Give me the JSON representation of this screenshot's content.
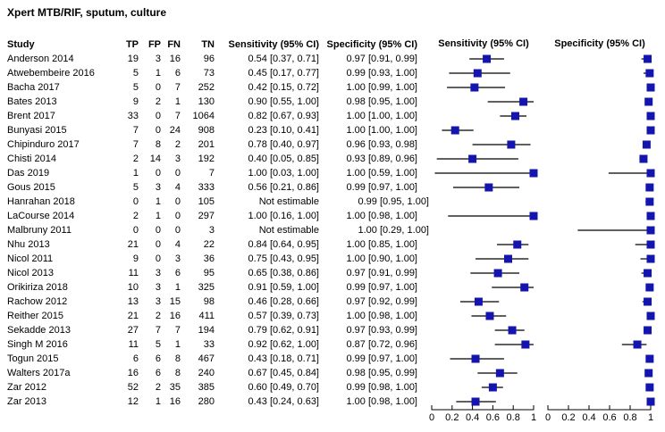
{
  "title": "Xpert MTB/RIF, sputum, culture",
  "colors": {
    "marker": "#1414AE",
    "ci_line": "#000000",
    "axis": "#000000",
    "text": "#000000",
    "background": "#ffffff"
  },
  "table": {
    "headers": {
      "study": "Study",
      "tp": "TP",
      "fp": "FP",
      "fn": "FN",
      "tn": "TN",
      "sensitivity": "Sensitivity (95% CI)",
      "specificity": "Specificity (95% CI)"
    },
    "plot_headers": {
      "sensitivity": "Sensitivity (95% CI)",
      "specificity": "Specificity (95% CI)"
    },
    "not_estimable_label": "Not estimable"
  },
  "chart_data": {
    "type": "forest",
    "panels": [
      "Sensitivity (95% CI)",
      "Specificity (95% CI)"
    ],
    "axis": {
      "range": [
        0,
        1
      ],
      "ticks": [
        0,
        0.2,
        0.4,
        0.6,
        0.8,
        1
      ],
      "tick_labels": [
        "0",
        "0.2",
        "0.4",
        "0.6",
        "0.8",
        "1"
      ]
    },
    "studies": [
      {
        "study": "Anderson 2014",
        "tp": 19,
        "fp": 3,
        "fn": 16,
        "tn": 96,
        "sensitivity_text": "0.54 [0.37, 0.71]",
        "specificity_text": "0.97 [0.91, 0.99]",
        "sensitivity": [
          0.54,
          0.37,
          0.71
        ],
        "specificity": [
          0.97,
          0.91,
          0.99
        ]
      },
      {
        "study": "Atwebembeire 2016",
        "tp": 5,
        "fp": 1,
        "fn": 6,
        "tn": 73,
        "sensitivity_text": "0.45 [0.17, 0.77]",
        "specificity_text": "0.99 [0.93, 1.00]",
        "sensitivity": [
          0.45,
          0.17,
          0.77
        ],
        "specificity": [
          0.99,
          0.93,
          1.0
        ]
      },
      {
        "study": "Bacha 2017",
        "tp": 5,
        "fp": 0,
        "fn": 7,
        "tn": 252,
        "sensitivity_text": "0.42 [0.15, 0.72]",
        "specificity_text": "1.00 [0.99, 1.00]",
        "sensitivity": [
          0.42,
          0.15,
          0.72
        ],
        "specificity": [
          1.0,
          0.99,
          1.0
        ]
      },
      {
        "study": "Bates 2013",
        "tp": 9,
        "fp": 2,
        "fn": 1,
        "tn": 130,
        "sensitivity_text": "0.90 [0.55, 1.00]",
        "specificity_text": "0.98 [0.95, 1.00]",
        "sensitivity": [
          0.9,
          0.55,
          1.0
        ],
        "specificity": [
          0.98,
          0.95,
          1.0
        ]
      },
      {
        "study": "Brent 2017",
        "tp": 33,
        "fp": 0,
        "fn": 7,
        "tn": 1064,
        "sensitivity_text": "0.82 [0.67, 0.93]",
        "specificity_text": "1.00 [1.00, 1.00]",
        "sensitivity": [
          0.82,
          0.67,
          0.93
        ],
        "specificity": [
          1.0,
          1.0,
          1.0
        ]
      },
      {
        "study": "Bunyasi 2015",
        "tp": 7,
        "fp": 0,
        "fn": 24,
        "tn": 908,
        "sensitivity_text": "0.23 [0.10, 0.41]",
        "specificity_text": "1.00 [1.00, 1.00]",
        "sensitivity": [
          0.23,
          0.1,
          0.41
        ],
        "specificity": [
          1.0,
          1.0,
          1.0
        ]
      },
      {
        "study": "Chipinduro 2017",
        "tp": 7,
        "fp": 8,
        "fn": 2,
        "tn": 201,
        "sensitivity_text": "0.78 [0.40, 0.97]",
        "specificity_text": "0.96 [0.93, 0.98]",
        "sensitivity": [
          0.78,
          0.4,
          0.97
        ],
        "specificity": [
          0.96,
          0.93,
          0.98
        ]
      },
      {
        "study": "Chisti 2014",
        "tp": 2,
        "fp": 14,
        "fn": 3,
        "tn": 192,
        "sensitivity_text": "0.40 [0.05, 0.85]",
        "specificity_text": "0.93 [0.89, 0.96]",
        "sensitivity": [
          0.4,
          0.05,
          0.85
        ],
        "specificity": [
          0.93,
          0.89,
          0.96
        ]
      },
      {
        "study": "Das 2019",
        "tp": 1,
        "fp": 0,
        "fn": 0,
        "tn": 7,
        "sensitivity_text": "1.00 [0.03, 1.00]",
        "specificity_text": "1.00 [0.59, 1.00]",
        "sensitivity": [
          1.0,
          0.03,
          1.0
        ],
        "specificity": [
          1.0,
          0.59,
          1.0
        ]
      },
      {
        "study": "Gous 2015",
        "tp": 5,
        "fp": 3,
        "fn": 4,
        "tn": 333,
        "sensitivity_text": "0.56 [0.21, 0.86]",
        "specificity_text": "0.99 [0.97, 1.00]",
        "sensitivity": [
          0.56,
          0.21,
          0.86
        ],
        "specificity": [
          0.99,
          0.97,
          1.0
        ]
      },
      {
        "study": "Hanrahan 2018",
        "tp": 0,
        "fp": 1,
        "fn": 0,
        "tn": 105,
        "sensitivity_text": "Not estimable",
        "specificity_text": "0.99 [0.95, 1.00]",
        "sensitivity": null,
        "specificity": [
          0.99,
          0.95,
          1.0
        ]
      },
      {
        "study": "LaCourse 2014",
        "tp": 2,
        "fp": 1,
        "fn": 0,
        "tn": 297,
        "sensitivity_text": "1.00 [0.16, 1.00]",
        "specificity_text": "1.00 [0.98, 1.00]",
        "sensitivity": [
          1.0,
          0.16,
          1.0
        ],
        "specificity": [
          1.0,
          0.98,
          1.0
        ]
      },
      {
        "study": "Malbruny 2011",
        "tp": 0,
        "fp": 0,
        "fn": 0,
        "tn": 3,
        "sensitivity_text": "Not estimable",
        "specificity_text": "1.00 [0.29, 1.00]",
        "sensitivity": null,
        "specificity": [
          1.0,
          0.29,
          1.0
        ]
      },
      {
        "study": "Nhu 2013",
        "tp": 21,
        "fp": 0,
        "fn": 4,
        "tn": 22,
        "sensitivity_text": "0.84 [0.64, 0.95]",
        "specificity_text": "1.00 [0.85, 1.00]",
        "sensitivity": [
          0.84,
          0.64,
          0.95
        ],
        "specificity": [
          1.0,
          0.85,
          1.0
        ]
      },
      {
        "study": "Nicol 2011",
        "tp": 9,
        "fp": 0,
        "fn": 3,
        "tn": 36,
        "sensitivity_text": "0.75 [0.43, 0.95]",
        "specificity_text": "1.00 [0.90, 1.00]",
        "sensitivity": [
          0.75,
          0.43,
          0.95
        ],
        "specificity": [
          1.0,
          0.9,
          1.0
        ]
      },
      {
        "study": "Nicol 2013",
        "tp": 11,
        "fp": 3,
        "fn": 6,
        "tn": 95,
        "sensitivity_text": "0.65 [0.38, 0.86]",
        "specificity_text": "0.97 [0.91, 0.99]",
        "sensitivity": [
          0.65,
          0.38,
          0.86
        ],
        "specificity": [
          0.97,
          0.91,
          0.99
        ]
      },
      {
        "study": "Orikiriza 2018",
        "tp": 10,
        "fp": 3,
        "fn": 1,
        "tn": 325,
        "sensitivity_text": "0.91 [0.59, 1.00]",
        "specificity_text": "0.99 [0.97, 1.00]",
        "sensitivity": [
          0.91,
          0.59,
          1.0
        ],
        "specificity": [
          0.99,
          0.97,
          1.0
        ]
      },
      {
        "study": "Rachow 2012",
        "tp": 13,
        "fp": 3,
        "fn": 15,
        "tn": 98,
        "sensitivity_text": "0.46 [0.28, 0.66]",
        "specificity_text": "0.97 [0.92, 0.99]",
        "sensitivity": [
          0.46,
          0.28,
          0.66
        ],
        "specificity": [
          0.97,
          0.92,
          0.99
        ]
      },
      {
        "study": "Reither 2015",
        "tp": 21,
        "fp": 2,
        "fn": 16,
        "tn": 411,
        "sensitivity_text": "0.57 [0.39, 0.73]",
        "specificity_text": "1.00 [0.98, 1.00]",
        "sensitivity": [
          0.57,
          0.39,
          0.73
        ],
        "specificity": [
          1.0,
          0.98,
          1.0
        ]
      },
      {
        "study": "Sekadde 2013",
        "tp": 27,
        "fp": 7,
        "fn": 7,
        "tn": 194,
        "sensitivity_text": "0.79 [0.62, 0.91]",
        "specificity_text": "0.97 [0.93, 0.99]",
        "sensitivity": [
          0.79,
          0.62,
          0.91
        ],
        "specificity": [
          0.97,
          0.93,
          0.99
        ]
      },
      {
        "study": "Singh M 2016",
        "tp": 11,
        "fp": 5,
        "fn": 1,
        "tn": 33,
        "sensitivity_text": "0.92 [0.62, 1.00]",
        "specificity_text": "0.87 [0.72, 0.96]",
        "sensitivity": [
          0.92,
          0.62,
          1.0
        ],
        "specificity": [
          0.87,
          0.72,
          0.96
        ]
      },
      {
        "study": "Togun 2015",
        "tp": 6,
        "fp": 6,
        "fn": 8,
        "tn": 467,
        "sensitivity_text": "0.43 [0.18, 0.71]",
        "specificity_text": "0.99 [0.97, 1.00]",
        "sensitivity": [
          0.43,
          0.18,
          0.71
        ],
        "specificity": [
          0.99,
          0.97,
          1.0
        ]
      },
      {
        "study": "Walters 2017a",
        "tp": 16,
        "fp": 6,
        "fn": 8,
        "tn": 240,
        "sensitivity_text": "0.67 [0.45, 0.84]",
        "specificity_text": "0.98 [0.95, 0.99]",
        "sensitivity": [
          0.67,
          0.45,
          0.84
        ],
        "specificity": [
          0.98,
          0.95,
          0.99
        ]
      },
      {
        "study": "Zar 2012",
        "tp": 52,
        "fp": 2,
        "fn": 35,
        "tn": 385,
        "sensitivity_text": "0.60 [0.49, 0.70]",
        "specificity_text": "0.99 [0.98, 1.00]",
        "sensitivity": [
          0.6,
          0.49,
          0.7
        ],
        "specificity": [
          0.99,
          0.98,
          1.0
        ]
      },
      {
        "study": "Zar 2013",
        "tp": 12,
        "fp": 1,
        "fn": 16,
        "tn": 280,
        "sensitivity_text": "0.43 [0.24, 0.63]",
        "specificity_text": "1.00 [0.98, 1.00]",
        "sensitivity": [
          0.43,
          0.24,
          0.63
        ],
        "specificity": [
          1.0,
          0.98,
          1.0
        ]
      }
    ]
  }
}
